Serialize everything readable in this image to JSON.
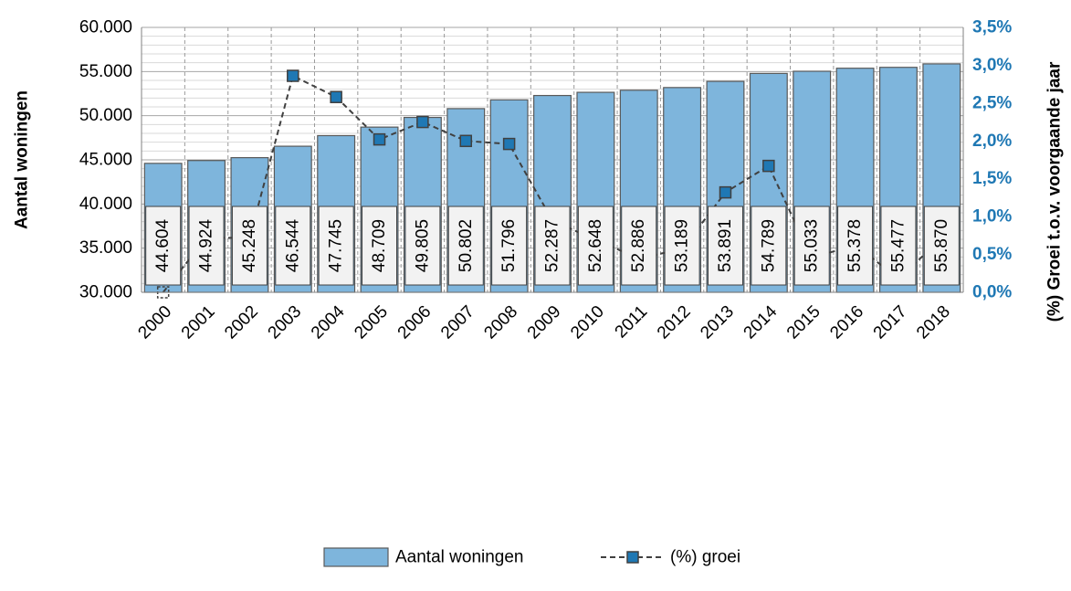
{
  "chart_data": {
    "type": "bar",
    "categories": [
      "2000",
      "2001",
      "2002",
      "2003",
      "2004",
      "2005",
      "2006",
      "2007",
      "2008",
      "2009",
      "2010",
      "2011",
      "2012",
      "2013",
      "2014",
      "2015",
      "2016",
      "2017",
      "2018"
    ],
    "series": [
      {
        "name": "Aantal woningen",
        "type": "bar",
        "axis": "left",
        "values": [
          44604,
          44924,
          45248,
          46544,
          47745,
          48709,
          49805,
          50802,
          51796,
          52287,
          52648,
          52886,
          53189,
          53891,
          54789,
          55033,
          55378,
          55477,
          55870
        ],
        "labels": [
          "44.604",
          "44.924",
          "45.248",
          "46.544",
          "47.745",
          "48.709",
          "49.805",
          "50.802",
          "51.796",
          "52.287",
          "52.648",
          "52.886",
          "53.189",
          "53.891",
          "54.789",
          "55.033",
          "55.378",
          "55.477",
          "55.870"
        ],
        "color": "#7eb5dc"
      },
      {
        "name": "(%) groei",
        "type": "line",
        "axis": "right",
        "values": [
          0.0,
          0.72,
          0.72,
          2.86,
          2.58,
          2.02,
          2.25,
          2.0,
          1.96,
          0.95,
          0.69,
          0.45,
          0.57,
          1.32,
          1.67,
          0.45,
          0.63,
          0.18,
          0.71
        ],
        "color": "#1f78b4"
      }
    ],
    "ylabel": "Aantal woningen",
    "y2label": "(%) Groei t.o.v. voorgaande jaar",
    "ylim": [
      30000,
      60000
    ],
    "y2lim": [
      0,
      3.5
    ],
    "yticks": [
      "30.000",
      "35.000",
      "40.000",
      "45.000",
      "50.000",
      "55.000",
      "60.000"
    ],
    "y2ticks": [
      "0,0%",
      "0,5%",
      "1,0%",
      "1,5%",
      "2,0%",
      "2,5%",
      "3,0%",
      "3,5%"
    ],
    "grid": true,
    "legend": "bottom"
  }
}
